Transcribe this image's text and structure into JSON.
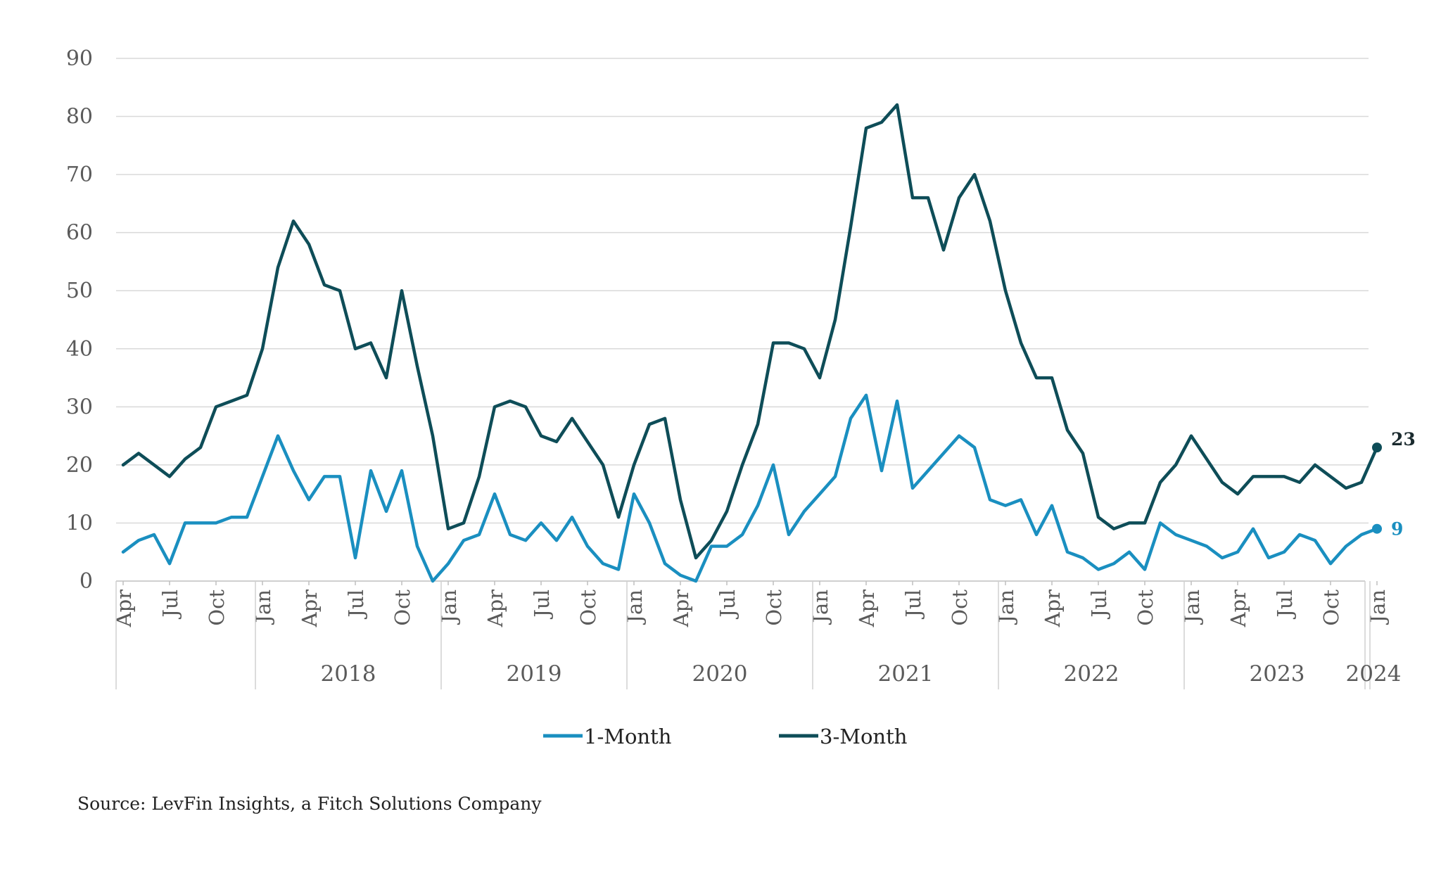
{
  "chart_data": {
    "type": "line",
    "title": "",
    "xlabel": "",
    "ylabel": "",
    "ylim": [
      0,
      90
    ],
    "yticks": [
      0,
      10,
      20,
      30,
      40,
      50,
      60,
      70,
      80,
      90
    ],
    "grid": true,
    "x_period": "monthly, Apr 2017 to Jan 2024",
    "x_tick_labels": [
      "Apr",
      "Jul",
      "Oct",
      "Jan",
      "Apr",
      "Jul",
      "Oct",
      "Jan",
      "Apr",
      "Jul",
      "Oct",
      "Jan",
      "Apr",
      "Jul",
      "Oct",
      "Jan",
      "Apr",
      "Jul",
      "Oct",
      "Jan",
      "Apr",
      "Jul",
      "Oct",
      "Jan",
      "Apr",
      "Jul",
      "Oct",
      "Jan"
    ],
    "years": [
      "2018",
      "2019",
      "2020",
      "2021",
      "2022",
      "2023",
      "2024"
    ],
    "legend_position": "bottom-center",
    "series": [
      {
        "name": "1-Month",
        "color": "#1A8FC0",
        "end_label": "9",
        "values": [
          5,
          7,
          8,
          3,
          10,
          10,
          10,
          11,
          11,
          18,
          25,
          19,
          14,
          18,
          18,
          4,
          19,
          12,
          19,
          6,
          0,
          3,
          7,
          8,
          15,
          8,
          7,
          10,
          7,
          11,
          6,
          3,
          2,
          15,
          10,
          3,
          1,
          0,
          6,
          6,
          8,
          13,
          20,
          8,
          12,
          15,
          18,
          28,
          32,
          19,
          31,
          16,
          19,
          22,
          25,
          23,
          14,
          13,
          14,
          8,
          13,
          5,
          4,
          2,
          3,
          5,
          2,
          10,
          8,
          7,
          6,
          4,
          5,
          9,
          4,
          5,
          8,
          7,
          3,
          6,
          8,
          9
        ]
      },
      {
        "name": "3-Month",
        "color": "#0E4D58",
        "end_label": "23",
        "values": [
          20,
          22,
          20,
          18,
          21,
          23,
          30,
          31,
          32,
          40,
          54,
          62,
          58,
          51,
          50,
          40,
          41,
          35,
          50,
          37,
          25,
          9,
          10,
          18,
          30,
          31,
          30,
          25,
          24,
          28,
          24,
          20,
          11,
          20,
          27,
          28,
          14,
          4,
          7,
          12,
          20,
          27,
          41,
          41,
          40,
          35,
          45,
          61,
          78,
          79,
          82,
          66,
          66,
          57,
          66,
          70,
          62,
          50,
          41,
          35,
          35,
          26,
          22,
          11,
          9,
          10,
          10,
          17,
          20,
          25,
          21,
          17,
          15,
          18,
          18,
          18,
          17,
          20,
          18,
          16,
          17,
          23
        ]
      }
    ]
  },
  "source": "Source: LevFin Insights, a Fitch Solutions Company"
}
